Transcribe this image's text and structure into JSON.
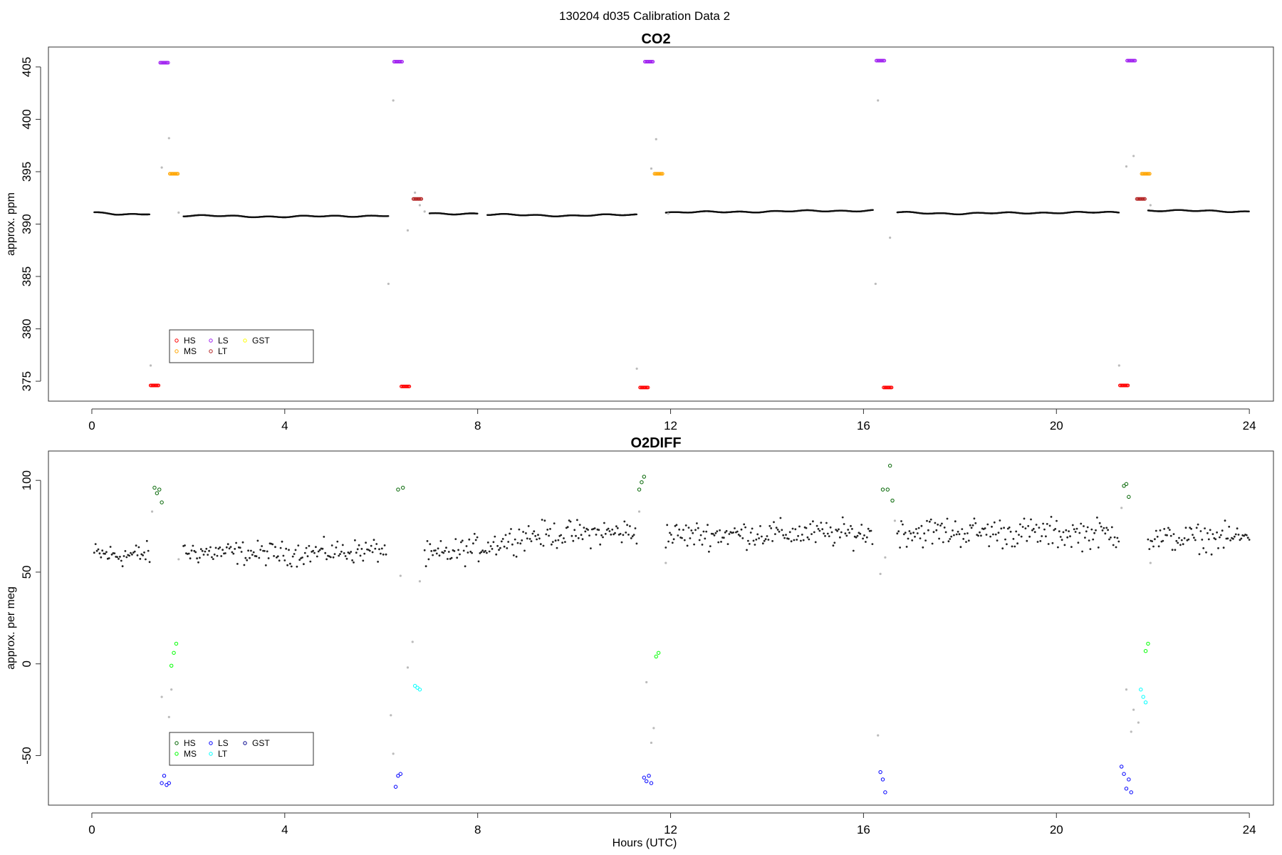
{
  "figure": {
    "suptitle": "130204   d035   Calibration Data 2",
    "xlabel": "Hours (UTC)"
  },
  "chart_data": [
    {
      "type": "scatter",
      "title": "CO2",
      "xlabel": "Hours (UTC)",
      "ylabel": "approx. ppm",
      "xlim": [
        -0.9,
        24.5
      ],
      "ylim": [
        373.1,
        406.9
      ],
      "xticks": [
        0,
        4,
        8,
        12,
        16,
        20,
        24
      ],
      "yticks": [
        375,
        380,
        385,
        390,
        395,
        400,
        405
      ],
      "grid": false,
      "legend": {
        "placement": "lower-left",
        "entries": [
          {
            "name": "HS",
            "color": "#ff0000"
          },
          {
            "name": "MS",
            "color": "#ffa500"
          },
          {
            "name": "LS",
            "color": "#a020f0"
          },
          {
            "name": "LT",
            "color": "#b22222"
          },
          {
            "name": "GST",
            "color": "#ffff00"
          }
        ]
      },
      "ambient": {
        "color": "#000000",
        "segments": [
          {
            "x": [
              0.05,
              0.5,
              1.0,
              1.2
            ],
            "y": [
              391.1,
              390.9,
              390.9,
              391.0
            ]
          },
          {
            "x": [
              1.9,
              4.0,
              6.0,
              6.15
            ],
            "y": [
              390.8,
              390.7,
              390.8,
              390.8
            ]
          },
          {
            "x": [
              7.0,
              8.0
            ],
            "y": [
              391.0,
              391.0
            ]
          },
          {
            "x": [
              8.2,
              10.0,
              11.3
            ],
            "y": [
              390.9,
              390.8,
              390.9
            ]
          },
          {
            "x": [
              11.9,
              14.0,
              16.2
            ],
            "y": [
              391.1,
              391.2,
              391.3
            ]
          },
          {
            "x": [
              16.7,
              18.0,
              20.0,
              21.3
            ],
            "y": [
              391.1,
              391.0,
              391.1,
              391.1
            ]
          },
          {
            "x": [
              21.9,
              24.0
            ],
            "y": [
              391.3,
              391.2
            ]
          }
        ]
      },
      "transitions": {
        "color": "#bbbbbb",
        "points": [
          [
            1.22,
            376.5
          ],
          [
            1.45,
            395.4
          ],
          [
            1.6,
            398.2
          ],
          [
            1.8,
            391.1
          ],
          [
            6.15,
            384.3
          ],
          [
            6.25,
            401.8
          ],
          [
            6.55,
            389.4
          ],
          [
            6.7,
            393.0
          ],
          [
            6.8,
            391.8
          ],
          [
            6.9,
            391.2
          ],
          [
            11.3,
            376.2
          ],
          [
            11.6,
            395.3
          ],
          [
            11.7,
            398.1
          ],
          [
            11.95,
            391.0
          ],
          [
            16.25,
            384.3
          ],
          [
            16.3,
            401.8
          ],
          [
            16.55,
            388.7
          ],
          [
            21.3,
            376.5
          ],
          [
            21.45,
            395.5
          ],
          [
            21.6,
            396.5
          ],
          [
            21.95,
            391.8
          ]
        ]
      },
      "calibration": [
        {
          "name": "HS",
          "color": "#ff0000",
          "points": [
            [
              1.3,
              374.6
            ],
            [
              6.5,
              374.5
            ],
            [
              11.45,
              374.4
            ],
            [
              16.5,
              374.4
            ],
            [
              21.4,
              374.6
            ]
          ]
        },
        {
          "name": "LS",
          "color": "#a020f0",
          "points": [
            [
              1.5,
              405.4
            ],
            [
              6.35,
              405.5
            ],
            [
              11.55,
              405.5
            ],
            [
              16.35,
              405.6
            ],
            [
              21.55,
              405.6
            ]
          ]
        },
        {
          "name": "MS",
          "color": "#ffa500",
          "points": [
            [
              1.7,
              394.8
            ],
            [
              11.75,
              394.8
            ],
            [
              21.85,
              394.8
            ]
          ]
        },
        {
          "name": "LT",
          "color": "#b22222",
          "points": [
            [
              6.75,
              392.4
            ],
            [
              21.75,
              392.4
            ]
          ]
        }
      ]
    },
    {
      "type": "scatter",
      "title": "O2DIFF",
      "xlabel": "Hours (UTC)",
      "ylabel": "approx. per meg",
      "xlim": [
        -0.9,
        24.5
      ],
      "ylim": [
        -77,
        116
      ],
      "xticks": [
        0,
        4,
        8,
        12,
        16,
        20,
        24
      ],
      "yticks": [
        -50,
        0,
        50,
        100
      ],
      "grid": false,
      "legend": {
        "placement": "lower-left",
        "entries": [
          {
            "name": "HS",
            "color": "#006400"
          },
          {
            "name": "MS",
            "color": "#00ff00"
          },
          {
            "name": "LS",
            "color": "#0000ff"
          },
          {
            "name": "LT",
            "color": "#00ffff"
          },
          {
            "name": "GST",
            "color": "#00008b"
          }
        ]
      },
      "ambient": {
        "color": "#000000",
        "segments": [
          {
            "x": [
              0.05,
              0.6,
              1.2
            ],
            "y": [
              60,
              59,
              60
            ],
            "spread": 7
          },
          {
            "x": [
              1.9,
              4.0,
              6.1
            ],
            "y": [
              61,
              60,
              62
            ],
            "spread": 7
          },
          {
            "x": [
              6.9,
              8.0,
              9.0,
              11.3
            ],
            "y": [
              58,
              63,
              70,
              72
            ],
            "spread": 8
          },
          {
            "x": [
              11.9,
              14.0,
              16.2
            ],
            "y": [
              70,
              71,
              71
            ],
            "spread": 8
          },
          {
            "x": [
              16.7,
              18.0,
              20.0,
              21.3
            ],
            "y": [
              72,
              72,
              71,
              71
            ],
            "spread": 9
          },
          {
            "x": [
              21.9,
              24.0
            ],
            "y": [
              68,
              69
            ],
            "spread": 8
          }
        ]
      },
      "transitions": {
        "color": "#bbbbbb",
        "points": [
          [
            1.25,
            83
          ],
          [
            1.45,
            -18
          ],
          [
            1.6,
            -29
          ],
          [
            1.65,
            -14
          ],
          [
            1.8,
            57
          ],
          [
            6.2,
            -28
          ],
          [
            6.25,
            -49
          ],
          [
            6.4,
            48
          ],
          [
            6.65,
            12
          ],
          [
            6.55,
            -2
          ],
          [
            6.8,
            45
          ],
          [
            11.35,
            83
          ],
          [
            11.5,
            -10
          ],
          [
            11.6,
            -43
          ],
          [
            11.65,
            -35
          ],
          [
            11.9,
            55
          ],
          [
            16.3,
            -39
          ],
          [
            16.35,
            49
          ],
          [
            16.45,
            58
          ],
          [
            16.65,
            78
          ],
          [
            21.35,
            85
          ],
          [
            21.45,
            -14
          ],
          [
            21.55,
            -37
          ],
          [
            21.6,
            -25
          ],
          [
            21.7,
            -32
          ],
          [
            21.95,
            55
          ]
        ]
      },
      "calibration": [
        {
          "name": "HS",
          "color": "#006400",
          "points": [
            [
              1.3,
              96
            ],
            [
              1.35,
              93
            ],
            [
              1.4,
              95
            ],
            [
              1.45,
              88
            ],
            [
              6.35,
              95
            ],
            [
              6.45,
              96
            ],
            [
              11.35,
              95
            ],
            [
              11.4,
              99
            ],
            [
              11.45,
              102
            ],
            [
              16.4,
              95
            ],
            [
              16.5,
              95
            ],
            [
              16.55,
              108
            ],
            [
              16.6,
              89
            ],
            [
              21.4,
              97
            ],
            [
              21.45,
              98
            ],
            [
              21.5,
              91
            ]
          ]
        },
        {
          "name": "MS",
          "color": "#00ff00",
          "points": [
            [
              1.65,
              -1
            ],
            [
              1.7,
              6
            ],
            [
              1.75,
              11
            ],
            [
              11.7,
              4
            ],
            [
              11.75,
              6
            ],
            [
              21.85,
              7
            ],
            [
              21.9,
              11
            ]
          ]
        },
        {
          "name": "LS",
          "color": "#0000ff",
          "points": [
            [
              1.45,
              -65
            ],
            [
              1.5,
              -61
            ],
            [
              1.55,
              -66
            ],
            [
              1.6,
              -65
            ],
            [
              6.3,
              -67
            ],
            [
              6.35,
              -61
            ],
            [
              6.4,
              -60
            ],
            [
              11.45,
              -62
            ],
            [
              11.5,
              -64
            ],
            [
              11.55,
              -61
            ],
            [
              11.6,
              -65
            ],
            [
              16.35,
              -59
            ],
            [
              16.4,
              -63
            ],
            [
              16.45,
              -70
            ],
            [
              21.35,
              -56
            ],
            [
              21.4,
              -60
            ],
            [
              21.45,
              -68
            ],
            [
              21.5,
              -63
            ],
            [
              21.55,
              -70
            ]
          ]
        },
        {
          "name": "LT",
          "color": "#00ffff",
          "points": [
            [
              6.7,
              -12
            ],
            [
              6.75,
              -13
            ],
            [
              6.8,
              -14
            ],
            [
              21.75,
              -14
            ],
            [
              21.8,
              -18
            ],
            [
              21.85,
              -21
            ]
          ]
        }
      ]
    }
  ]
}
